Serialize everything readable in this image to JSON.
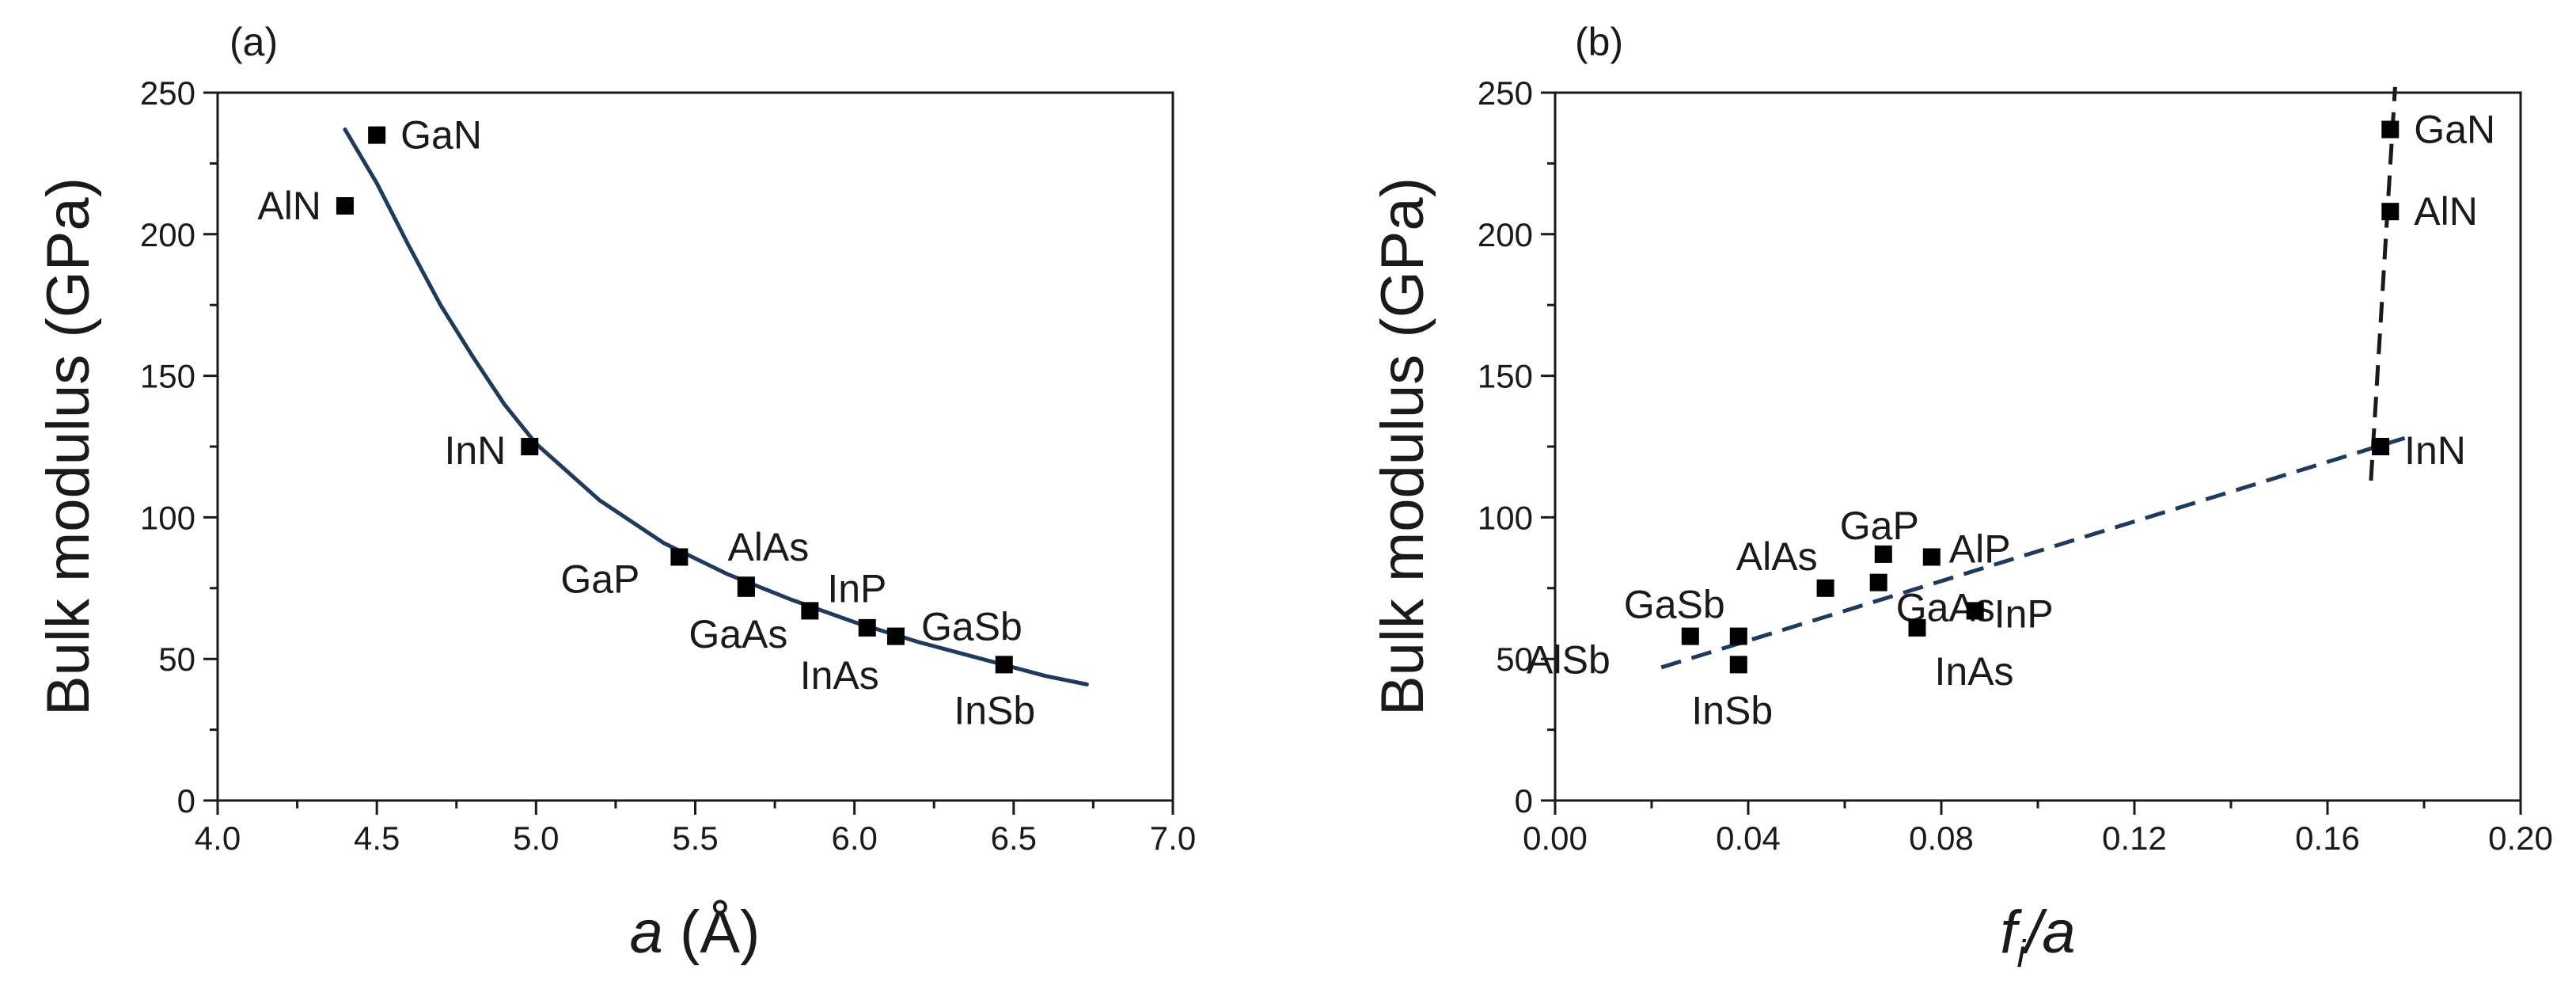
{
  "chart_data": [
    {
      "type": "scatter",
      "panel_label": "(a)",
      "ylabel": "Bulk modulus (GPa)",
      "xlabel_symbol": "a",
      "xlabel_unit": " (Å)",
      "xlim": [
        4.0,
        7.0
      ],
      "ylim": [
        0,
        250
      ],
      "xticks": [
        "4.0",
        "4.5",
        "5.0",
        "5.5",
        "6.0",
        "6.5",
        "7.0"
      ],
      "yticks": [
        "0",
        "50",
        "100",
        "150",
        "200",
        "250"
      ],
      "points": [
        {
          "label": "GaN",
          "x": 4.5,
          "y": 235
        },
        {
          "label": "AlN",
          "x": 4.4,
          "y": 210
        },
        {
          "label": "InN",
          "x": 4.98,
          "y": 125
        },
        {
          "label": "GaP",
          "x": 5.45,
          "y": 86
        },
        {
          "label": "AlAs",
          "x": 5.66,
          "y": 76
        },
        {
          "label": "GaAs",
          "x": 5.66,
          "y": 75
        },
        {
          "label": "InP",
          "x": 5.86,
          "y": 67
        },
        {
          "label": "InAs",
          "x": 6.04,
          "y": 61
        },
        {
          "label": "GaSb",
          "x": 6.13,
          "y": 58
        },
        {
          "label": "InSb",
          "x": 6.47,
          "y": 48
        }
      ],
      "fit": {
        "style": "solid",
        "color": "#1f3a5a",
        "x": [
          4.4,
          4.5,
          4.6,
          4.7,
          4.8,
          4.9,
          5.0,
          5.2,
          5.4,
          5.6,
          5.8,
          6.0,
          6.2,
          6.4,
          6.6,
          6.73
        ],
        "y": [
          237,
          218,
          196,
          175,
          157,
          140,
          126,
          106,
          91,
          80,
          71,
          63,
          56,
          50,
          44,
          41
        ]
      }
    },
    {
      "type": "scatter",
      "panel_label": "(b)",
      "ylabel": "Bulk modulus (GPa)",
      "xlabel_symbol": "f",
      "xlabel_sub": "i",
      "xlabel_rest": "/a",
      "xlim": [
        0.0,
        0.2
      ],
      "ylim": [
        0,
        250
      ],
      "xticks": [
        "0.00",
        "0.04",
        "0.08",
        "0.12",
        "0.16",
        "0.20"
      ],
      "yticks": [
        "0",
        "50",
        "100",
        "150",
        "200",
        "250"
      ],
      "points": [
        {
          "label": "GaN",
          "x": 0.173,
          "y": 237
        },
        {
          "label": "AlN",
          "x": 0.173,
          "y": 208
        },
        {
          "label": "InN",
          "x": 0.171,
          "y": 125
        },
        {
          "label": "GaP",
          "x": 0.068,
          "y": 87
        },
        {
          "label": "AlP",
          "x": 0.078,
          "y": 86
        },
        {
          "label": "AlAs",
          "x": 0.056,
          "y": 75
        },
        {
          "label": "GaAs",
          "x": 0.067,
          "y": 77
        },
        {
          "label": "InP",
          "x": 0.087,
          "y": 67
        },
        {
          "label": "InAs",
          "x": 0.075,
          "y": 61
        },
        {
          "label": "GaSb",
          "x": 0.028,
          "y": 58
        },
        {
          "label": "AlSb",
          "x": 0.038,
          "y": 58
        },
        {
          "label": "InSb",
          "x": 0.038,
          "y": 48
        }
      ],
      "lines": [
        {
          "style": "dashed",
          "color": "#1f3a5a",
          "x": [
            0.022,
            0.176
          ],
          "y": [
            47,
            128
          ]
        },
        {
          "style": "dashed",
          "color": "#1a1a1a",
          "x": [
            0.169,
            0.174
          ],
          "y": [
            113,
            252
          ]
        }
      ]
    }
  ]
}
